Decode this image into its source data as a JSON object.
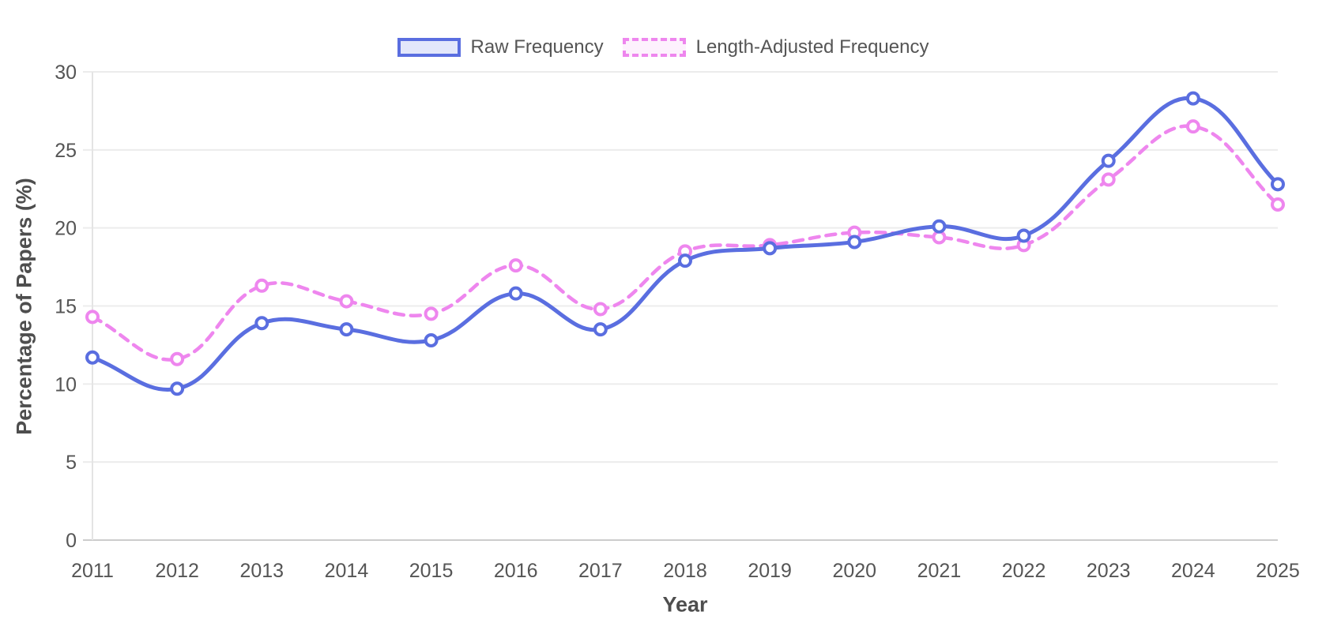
{
  "chart_data": {
    "type": "line",
    "title": "",
    "xlabel": "Year",
    "ylabel": "Percentage of Papers (%)",
    "x": [
      2011,
      2012,
      2013,
      2014,
      2015,
      2016,
      2017,
      2018,
      2019,
      2020,
      2021,
      2022,
      2023,
      2024,
      2025
    ],
    "series": [
      {
        "name": "Raw Frequency",
        "key": "raw-frequency",
        "color": "#5a6ee0",
        "fill_color": "#e3e7fb",
        "line_style": "solid",
        "values": [
          11.7,
          9.7,
          13.9,
          13.5,
          12.8,
          15.8,
          13.5,
          17.9,
          18.7,
          19.1,
          20.1,
          19.5,
          24.3,
          28.3,
          22.8
        ]
      },
      {
        "name": "Length-Adjusted Frequency",
        "key": "length-adjusted-frequency",
        "color": "#ee86ee",
        "fill_color": "#fdf1fd",
        "line_style": "dashed",
        "values": [
          14.3,
          11.6,
          16.3,
          15.3,
          14.5,
          17.6,
          14.8,
          18.5,
          18.9,
          19.7,
          19.4,
          18.9,
          23.1,
          26.5,
          21.5
        ]
      }
    ],
    "ylim": [
      0,
      30
    ],
    "yticks": [
      0,
      5,
      10,
      15,
      20,
      25,
      30
    ],
    "grid": true,
    "legend_position": "top"
  },
  "colors": {
    "grid_line": "#ececec",
    "zero_line": "#cccccc",
    "axis_line": "#e4e4e4",
    "tick_text": "#555555",
    "title_text": "#4e4e4e"
  }
}
